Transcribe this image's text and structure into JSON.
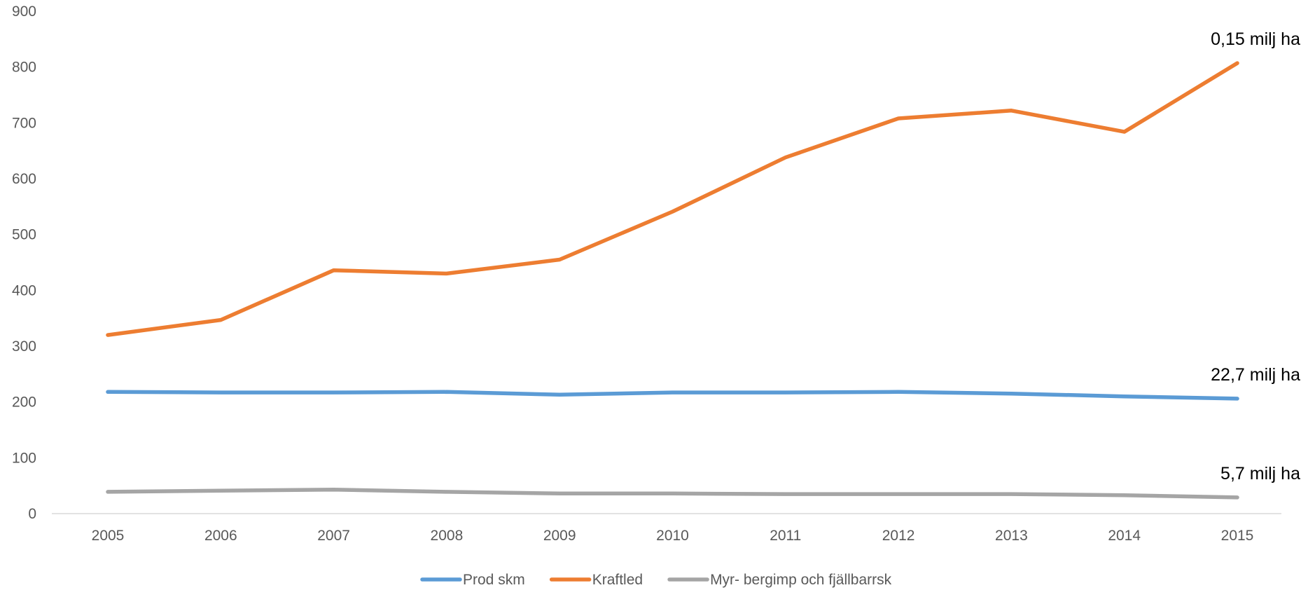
{
  "chart_data": {
    "type": "line",
    "title": "",
    "xlabel": "",
    "ylabel": "",
    "x": [
      "2005",
      "2006",
      "2007",
      "2008",
      "2009",
      "2010",
      "2011",
      "2012",
      "2013",
      "2014",
      "2015"
    ],
    "ylim": [
      0,
      900
    ],
    "yticks": [
      0,
      100,
      200,
      300,
      400,
      500,
      600,
      700,
      800,
      900
    ],
    "grid": false,
    "legend_position": "bottom",
    "series": [
      {
        "name": "Prod skm",
        "color": "#5B9BD5",
        "values": [
          218,
          217,
          217,
          218,
          213,
          217,
          217,
          218,
          215,
          210,
          206
        ]
      },
      {
        "name": "Kraftled",
        "color": "#ED7D31",
        "values": [
          320,
          347,
          436,
          430,
          455,
          541,
          638,
          708,
          722,
          684,
          807
        ]
      },
      {
        "name": "Myr- bergimp och fjällbarrsk",
        "color": "#A5A5A5",
        "values": [
          39,
          41,
          43,
          39,
          36,
          36,
          35,
          35,
          35,
          33,
          29
        ]
      }
    ],
    "annotations": [
      {
        "text": "0,15 milj ha",
        "series": "Kraftled",
        "x": "2015"
      },
      {
        "text": "22,7 milj ha",
        "series": "Prod skm",
        "x": "2015"
      },
      {
        "text": "5,7 milj ha",
        "series": "Myr- bergimp och fjällbarrsk",
        "x": "2015"
      }
    ]
  }
}
